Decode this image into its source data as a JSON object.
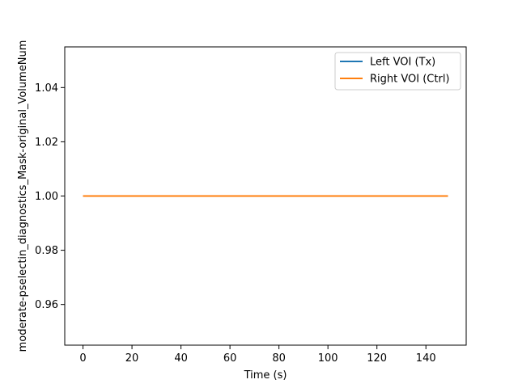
{
  "chart_data": {
    "type": "line",
    "title": "",
    "xlabel": "Time (s)",
    "ylabel": "moderate-pselectin_diagnostics_Mask-original_VolumeNum",
    "xlim": [
      -7.45,
      156.45
    ],
    "ylim": [
      0.945,
      1.055
    ],
    "x_ticks": [
      0,
      20,
      40,
      60,
      80,
      100,
      120,
      140
    ],
    "x_tick_labels": [
      "0",
      "20",
      "40",
      "60",
      "80",
      "100",
      "120",
      "140"
    ],
    "y_ticks": [
      0.96,
      0.98,
      1.0,
      1.02,
      1.04
    ],
    "y_tick_labels": [
      "0.96",
      "0.98",
      "1.00",
      "1.02",
      "1.04"
    ],
    "grid": false,
    "legend_position": "top-right",
    "series": [
      {
        "name": "Left VOI (Tx)",
        "color": "#1f77b4",
        "x": [
          0,
          149
        ],
        "y": [
          1.0,
          1.0
        ]
      },
      {
        "name": "Right VOI (Ctrl)",
        "color": "#ff7f0e",
        "x": [
          0,
          149
        ],
        "y": [
          1.0,
          1.0
        ]
      }
    ]
  }
}
